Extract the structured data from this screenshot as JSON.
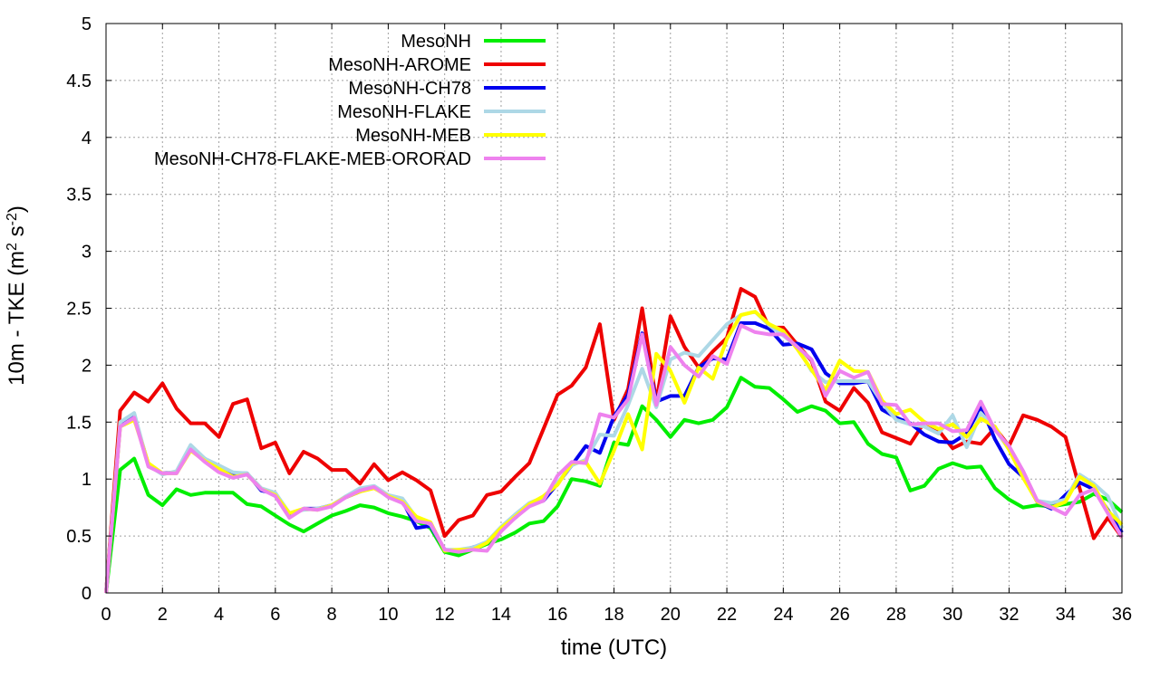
{
  "chart_data": {
    "type": "line",
    "title": "",
    "xlabel": "time (UTC)",
    "ylabel": {
      "base": "10m - TKE (m",
      "sup1": "2",
      "mid": " s",
      "sup2": "-2",
      "end": ")"
    },
    "xlim": [
      0,
      36
    ],
    "ylim": [
      0,
      5
    ],
    "xticks": [
      0,
      2,
      4,
      6,
      8,
      10,
      12,
      14,
      16,
      18,
      20,
      22,
      24,
      26,
      28,
      30,
      32,
      34,
      36
    ],
    "yticks": [
      0,
      0.5,
      1,
      1.5,
      2,
      2.5,
      3,
      3.5,
      4,
      4.5,
      5
    ],
    "ytick_labels": [
      "0",
      "0.5",
      "1",
      "1.5",
      "2",
      "2.5",
      "3",
      "3.5",
      "4",
      "4.5",
      "5"
    ],
    "grid": true,
    "legend_position": "top-center",
    "x": [
      0,
      0.5,
      1,
      1.5,
      2,
      2.5,
      3,
      3.5,
      4,
      4.5,
      5,
      5.5,
      6,
      6.5,
      7,
      7.5,
      8,
      8.5,
      9,
      9.5,
      10,
      10.5,
      11,
      11.5,
      12,
      12.5,
      13,
      13.5,
      14,
      14.5,
      15,
      15.5,
      16,
      16.5,
      17,
      17.5,
      18,
      18.5,
      19,
      19.5,
      20,
      20.5,
      21,
      21.5,
      22,
      22.5,
      23,
      23.5,
      24,
      24.5,
      25,
      25.5,
      26,
      26.5,
      27,
      27.5,
      28,
      28.5,
      29,
      29.5,
      30,
      30.5,
      31,
      31.5,
      32,
      32.5,
      33,
      33.5,
      34,
      34.5,
      35,
      35.5,
      36
    ],
    "series": [
      {
        "name": "MesoNH",
        "color": "#00ee00",
        "values": [
          0,
          1.08,
          1.18,
          0.86,
          0.77,
          0.91,
          0.86,
          0.88,
          0.88,
          0.88,
          0.78,
          0.76,
          0.68,
          0.6,
          0.54,
          0.61,
          0.68,
          0.72,
          0.77,
          0.75,
          0.7,
          0.67,
          0.63,
          0.57,
          0.36,
          0.33,
          0.38,
          0.43,
          0.47,
          0.53,
          0.61,
          0.63,
          0.76,
          1.0,
          0.98,
          0.94,
          1.32,
          1.3,
          1.64,
          1.52,
          1.37,
          1.52,
          1.49,
          1.52,
          1.63,
          1.89,
          1.81,
          1.8,
          1.7,
          1.59,
          1.64,
          1.6,
          1.49,
          1.5,
          1.31,
          1.22,
          1.19,
          0.9,
          0.94,
          1.09,
          1.14,
          1.1,
          1.11,
          0.92,
          0.82,
          0.75,
          0.77,
          0.76,
          0.78,
          0.8,
          0.87,
          0.82,
          0.71
        ]
      },
      {
        "name": "MesoNH-AROME",
        "color": "#ee0000",
        "values": [
          0,
          1.6,
          1.76,
          1.68,
          1.84,
          1.62,
          1.49,
          1.49,
          1.37,
          1.66,
          1.7,
          1.27,
          1.32,
          1.05,
          1.24,
          1.18,
          1.08,
          1.08,
          0.96,
          1.13,
          0.99,
          1.06,
          0.99,
          0.9,
          0.5,
          0.64,
          0.68,
          0.86,
          0.89,
          1.02,
          1.14,
          1.44,
          1.74,
          1.82,
          1.98,
          2.36,
          1.52,
          1.79,
          2.5,
          1.68,
          2.43,
          2.16,
          1.98,
          2.12,
          2.24,
          2.67,
          2.6,
          2.33,
          2.33,
          2.18,
          2.04,
          1.68,
          1.6,
          1.8,
          1.67,
          1.41,
          1.36,
          1.31,
          1.5,
          1.43,
          1.27,
          1.33,
          1.31,
          1.45,
          1.29,
          1.56,
          1.52,
          1.46,
          1.37,
          0.92,
          0.48,
          0.66,
          0.49
        ]
      },
      {
        "name": "MesoNH-CH78",
        "color": "#0000ee",
        "values": [
          0,
          1.47,
          1.55,
          1.13,
          1.05,
          1.06,
          1.27,
          1.18,
          1.09,
          1.05,
          1.05,
          0.9,
          0.87,
          0.68,
          0.74,
          0.74,
          0.77,
          0.84,
          0.89,
          0.93,
          0.85,
          0.81,
          0.57,
          0.59,
          0.38,
          0.37,
          0.4,
          0.44,
          0.56,
          0.66,
          0.77,
          0.81,
          0.96,
          1.12,
          1.29,
          1.23,
          1.55,
          1.74,
          2.28,
          1.68,
          1.73,
          1.73,
          1.98,
          2.06,
          2.05,
          2.37,
          2.37,
          2.32,
          2.18,
          2.19,
          2.14,
          1.93,
          1.84,
          1.84,
          1.86,
          1.61,
          1.54,
          1.49,
          1.39,
          1.33,
          1.32,
          1.4,
          1.64,
          1.35,
          1.13,
          1.02,
          0.8,
          0.74,
          0.86,
          0.97,
          0.91,
          0.73,
          0.53
        ]
      },
      {
        "name": "MesoNH-FLAKE",
        "color": "#add8e6",
        "values": [
          0,
          1.5,
          1.58,
          1.12,
          1.04,
          1.07,
          1.3,
          1.18,
          1.12,
          1.06,
          1.05,
          0.92,
          0.88,
          0.7,
          0.73,
          0.74,
          0.77,
          0.85,
          0.92,
          0.94,
          0.86,
          0.83,
          0.66,
          0.6,
          0.38,
          0.38,
          0.4,
          0.45,
          0.58,
          0.69,
          0.79,
          0.84,
          0.97,
          1.12,
          1.17,
          1.39,
          1.38,
          1.65,
          1.97,
          1.63,
          2.05,
          2.11,
          2.08,
          2.22,
          2.36,
          2.44,
          2.47,
          2.35,
          2.26,
          2.16,
          1.95,
          1.85,
          1.86,
          1.86,
          1.86,
          1.67,
          1.52,
          1.48,
          1.46,
          1.4,
          1.56,
          1.28,
          1.58,
          1.44,
          1.26,
          1.02,
          0.81,
          0.79,
          0.82,
          1.04,
          0.96,
          0.85,
          0.57
        ]
      },
      {
        "name": "MesoNH-MEB",
        "color": "#ffff00",
        "values": [
          0,
          1.46,
          1.52,
          1.14,
          1.05,
          1.05,
          1.25,
          1.16,
          1.09,
          1.02,
          1.04,
          0.91,
          0.86,
          0.7,
          0.74,
          0.73,
          0.77,
          0.84,
          0.89,
          0.92,
          0.85,
          0.8,
          0.67,
          0.62,
          0.37,
          0.38,
          0.38,
          0.44,
          0.57,
          0.67,
          0.78,
          0.85,
          0.95,
          1.14,
          1.15,
          0.96,
          1.25,
          1.57,
          1.26,
          2.1,
          1.95,
          1.67,
          1.98,
          1.88,
          2.23,
          2.44,
          2.47,
          2.36,
          2.3,
          2.14,
          1.96,
          1.78,
          2.04,
          1.95,
          1.94,
          1.69,
          1.57,
          1.61,
          1.5,
          1.44,
          1.48,
          1.37,
          1.53,
          1.46,
          1.26,
          1.01,
          0.8,
          0.75,
          0.8,
          1.02,
          0.94,
          0.72,
          0.6
        ]
      },
      {
        "name": "MesoNH-CH78-FLAKE-MEB-ORORAD",
        "color": "#ee82ee",
        "values": [
          0,
          1.46,
          1.54,
          1.11,
          1.05,
          1.05,
          1.26,
          1.15,
          1.06,
          1.01,
          1.04,
          0.91,
          0.85,
          0.66,
          0.74,
          0.73,
          0.76,
          0.84,
          0.9,
          0.93,
          0.84,
          0.79,
          0.63,
          0.61,
          0.38,
          0.36,
          0.38,
          0.37,
          0.54,
          0.66,
          0.76,
          0.81,
          1.03,
          1.15,
          1.14,
          1.57,
          1.54,
          1.7,
          2.27,
          1.65,
          2.16,
          2.0,
          1.9,
          2.08,
          2.01,
          2.35,
          2.29,
          2.27,
          2.27,
          2.16,
          2.05,
          1.73,
          1.95,
          1.89,
          1.94,
          1.66,
          1.65,
          1.48,
          1.49,
          1.49,
          1.42,
          1.43,
          1.68,
          1.43,
          1.29,
          1.07,
          0.81,
          0.75,
          0.69,
          0.86,
          0.91,
          0.7,
          0.49
        ]
      }
    ]
  }
}
